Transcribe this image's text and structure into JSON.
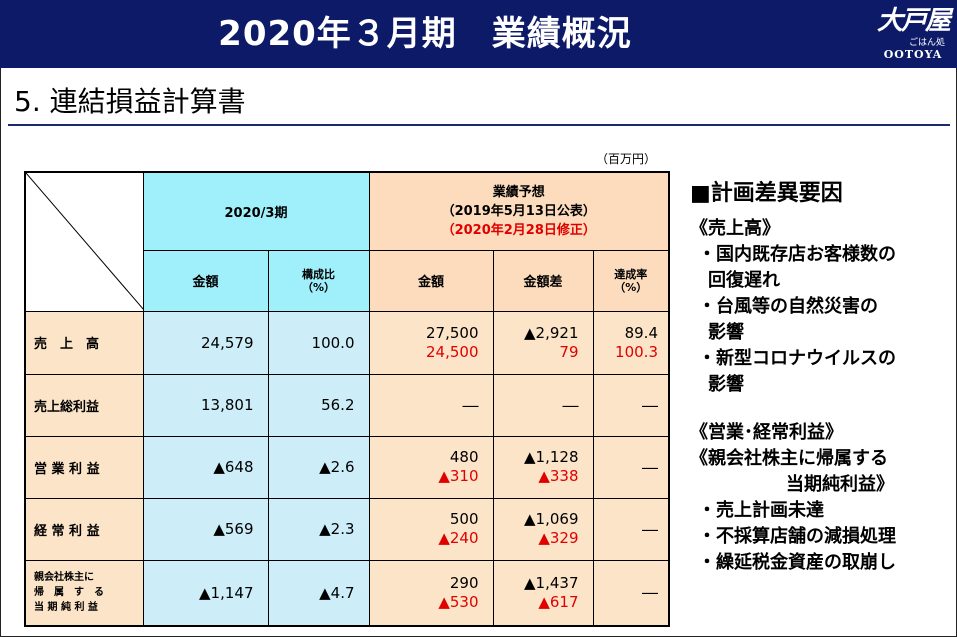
{
  "header": {
    "title": "2020年３月期　業績概況",
    "logo_mark": "大戸屋",
    "logo_sub": "ごはん処",
    "logo_en": "OOTOYA"
  },
  "section_title": "5. 連結損益計算書",
  "unit": "（百万円）",
  "table": {
    "col_group_actual": "2020/3期",
    "col_group_forecast_line1": "業績予想",
    "col_group_forecast_line2": "（2019年5月13日公表）",
    "col_group_forecast_line3": "（2020年2月28日修正）",
    "col_amount": "金額",
    "col_ratio_line1": "構成比",
    "col_ratio_line2": "（%）",
    "col_fc_amount": "金額",
    "col_fc_diff": "金額差",
    "col_fc_rate_line1": "達成率",
    "col_fc_rate_line2": "（%）",
    "rows": [
      {
        "label": "売　上　高",
        "amount": "24,579",
        "ratio": "100.0",
        "fc1": "27,500",
        "fc2": "24,500",
        "diff1": "▲2,921",
        "diff2": "79",
        "rate1": "89.4",
        "rate2": "100.3"
      },
      {
        "label": "売上総利益",
        "amount": "13,801",
        "ratio": "56.2",
        "fc": "―",
        "diff": "―",
        "rate": "―"
      },
      {
        "label": "営 業 利 益",
        "amount": "▲648",
        "ratio": "▲2.6",
        "fc1": "480",
        "fc2": "▲310",
        "diff1": "▲1,128",
        "diff2": "▲338",
        "rate": "―"
      },
      {
        "label": "経 常 利 益",
        "amount": "▲569",
        "ratio": "▲2.3",
        "fc1": "500",
        "fc2": "▲240",
        "diff1": "▲1,069",
        "diff2": "▲329",
        "rate": "―"
      },
      {
        "label_line1": "親会社株主に",
        "label_line2": "帰　属　す　る",
        "label_line3": "当 期 純 利 益",
        "amount": "▲1,147",
        "ratio": "▲4.7",
        "fc1": "290",
        "fc2": "▲530",
        "diff1": "▲1,437",
        "diff2": "▲617",
        "rate": "―"
      }
    ]
  },
  "factors": {
    "heading": "■計画差異要因",
    "sales_heading": "《売上高》",
    "sales_items": [
      {
        "l1": "・国内既存店お客様数の",
        "l2": "回復遅れ"
      },
      {
        "l1": "・台風等の自然災害の",
        "l2": "影響"
      },
      {
        "l1": "・新型コロナウイルスの",
        "l2": "影響"
      }
    ],
    "profit_heading": "《営業･経常利益》",
    "net_heading_line1": "《親会社株主に帰属する",
    "net_heading_line2": "当期純利益》",
    "profit_items": [
      "・売上計画未達",
      "・不採算店舗の減損処理",
      "・繰延税金資産の取崩し"
    ]
  },
  "colors": {
    "header_bg": "#0d1a68",
    "actual_bg": "#cdeef8",
    "forecast_bg": "#fbe4c8",
    "revised_text": "#e00000"
  }
}
